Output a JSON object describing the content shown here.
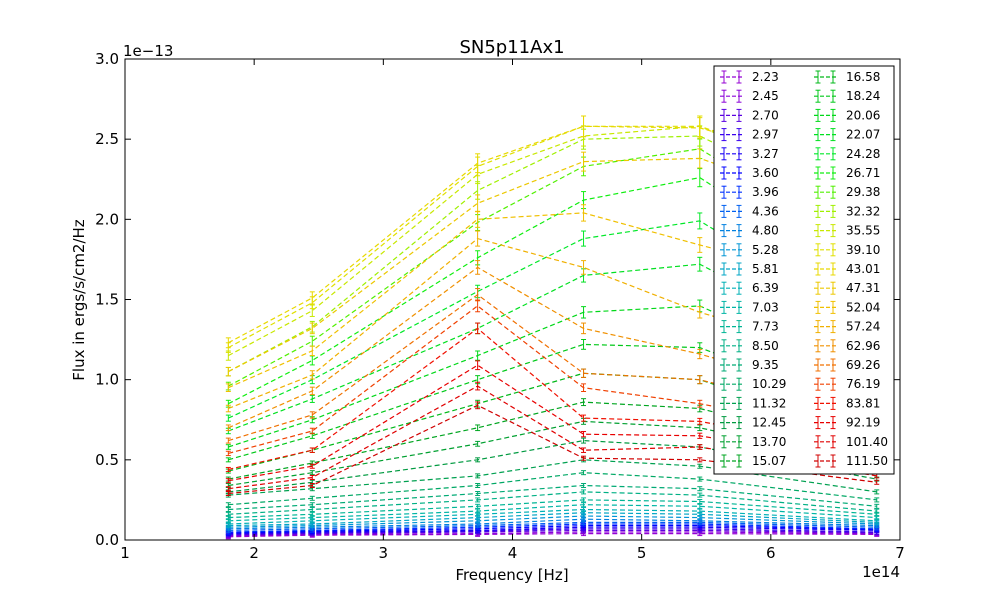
{
  "chart_data": {
    "type": "line",
    "title": "SN5p11Ax1",
    "xlabel": "Frequency [Hz]",
    "ylabel": "Flux in ergs/s/cm2/Hz",
    "x_offset_label": "1e14",
    "y_offset_label": "1e−13",
    "xlim": [
      100000000000000.0,
      700000000000000.0
    ],
    "ylim": [
      0,
      3e-13
    ],
    "x_ticks": [
      1,
      2,
      3,
      4,
      5,
      6,
      7
    ],
    "x_tick_labels": [
      "1",
      "2",
      "3",
      "4",
      "5",
      "6",
      "7"
    ],
    "y_ticks": [
      0,
      0.5,
      1.0,
      1.5,
      2.0,
      2.5,
      3.0
    ],
    "y_tick_labels": [
      "0.0",
      "0.5",
      "1.0",
      "1.5",
      "2.0",
      "2.5",
      "3.0"
    ],
    "line_style": "dashed",
    "error_bars": true,
    "grid": false,
    "legend_position": "upper-right",
    "legend_columns": 2,
    "x": [
      180000000000000.0,
      245000000000000.0,
      373000000000000.0,
      455000000000000.0,
      545000000000000.0,
      682000000000000.0
    ],
    "series": [
      {
        "name": "2.23",
        "color": "#9400d3",
        "values": [
          2e-15,
          3e-15,
          3.5e-15,
          4e-15,
          4e-15,
          3.5e-15
        ]
      },
      {
        "name": "2.45",
        "color": "#8a00d8",
        "values": [
          2.5e-15,
          3.5e-15,
          4e-15,
          5e-15,
          5e-15,
          4e-15
        ]
      },
      {
        "name": "2.70",
        "color": "#5a00e0",
        "values": [
          3e-15,
          4e-15,
          5e-15,
          6e-15,
          6e-15,
          4.5e-15
        ]
      },
      {
        "name": "2.97",
        "color": "#3a00ee",
        "values": [
          3.5e-15,
          4.5e-15,
          5.5e-15,
          7e-15,
          7e-15,
          5e-15
        ]
      },
      {
        "name": "3.27",
        "color": "#1a00f5",
        "values": [
          4e-15,
          5e-15,
          6e-15,
          8e-15,
          8e-15,
          6e-15
        ]
      },
      {
        "name": "3.60",
        "color": "#0000ff",
        "values": [
          4.5e-15,
          5.5e-15,
          7e-15,
          9e-15,
          9e-15,
          6.5e-15
        ]
      },
      {
        "name": "3.96",
        "color": "#0030ff",
        "values": [
          5e-15,
          6e-15,
          8e-15,
          1e-14,
          1e-14,
          7e-15
        ]
      },
      {
        "name": "4.36",
        "color": "#0060f0",
        "values": [
          6e-15,
          7e-15,
          9e-15,
          1.1e-14,
          1.1e-14,
          8e-15
        ]
      },
      {
        "name": "4.80",
        "color": "#0080e0",
        "values": [
          7e-15,
          8e-15,
          1e-14,
          1.3e-14,
          1.2e-14,
          9e-15
        ]
      },
      {
        "name": "5.28",
        "color": "#0095d5",
        "values": [
          8e-15,
          9e-15,
          1.2e-14,
          1.5e-14,
          1.4e-14,
          1e-14
        ]
      },
      {
        "name": "5.81",
        "color": "#00a5c5",
        "values": [
          9e-15,
          1e-14,
          1.4e-14,
          1.7e-14,
          1.6e-14,
          1.1e-14
        ]
      },
      {
        "name": "6.39",
        "color": "#00b0b5",
        "values": [
          1e-14,
          1.2e-14,
          1.6e-14,
          1.9e-14,
          1.8e-14,
          1.2e-14
        ]
      },
      {
        "name": "7.03",
        "color": "#00b5a5",
        "values": [
          1.2e-14,
          1.4e-14,
          1.8e-14,
          2.2e-14,
          2.1e-14,
          1.4e-14
        ]
      },
      {
        "name": "7.73",
        "color": "#00b595",
        "values": [
          1.4e-14,
          1.6e-14,
          2.1e-14,
          2.5e-14,
          2.4e-14,
          1.6e-14
        ]
      },
      {
        "name": "8.50",
        "color": "#00b085",
        "values": [
          1.6e-14,
          1.9e-14,
          2.5e-14,
          3e-14,
          2.8e-14,
          1.8e-14
        ]
      },
      {
        "name": "9.35",
        "color": "#00aa75",
        "values": [
          1.9e-14,
          2.2e-14,
          2.9e-14,
          3.4e-14,
          3.2e-14,
          2.1e-14
        ]
      },
      {
        "name": "10.29",
        "color": "#00a865",
        "values": [
          2.2e-14,
          2.6e-14,
          3.4e-14,
          4.2e-14,
          3.8e-14,
          2.5e-14
        ]
      },
      {
        "name": "11.32",
        "color": "#00a050",
        "values": [
          2.8e-14,
          3.2e-14,
          4e-14,
          5e-14,
          4.6e-14,
          3e-14
        ]
      },
      {
        "name": "12.45",
        "color": "#009a40",
        "values": [
          3e-14,
          3.6e-14,
          5e-14,
          6.2e-14,
          5.8e-14,
          3.8e-14
        ]
      },
      {
        "name": "13.70",
        "color": "#00a030",
        "values": [
          3.4e-14,
          4.2e-14,
          6e-14,
          7.4e-14,
          7e-14,
          4.6e-14
        ]
      },
      {
        "name": "15.07",
        "color": "#00a520",
        "values": [
          3.8e-14,
          4.8e-14,
          7e-14,
          8.6e-14,
          8.2e-14,
          5.4e-14
        ]
      },
      {
        "name": "16.58",
        "color": "#00b818",
        "values": [
          4.3e-14,
          5.6e-14,
          8.5e-14,
          1.04e-13,
          1e-13,
          6.4e-14
        ]
      },
      {
        "name": "18.24",
        "color": "#00c818",
        "values": [
          5e-14,
          6.5e-14,
          1e-13,
          1.22e-13,
          1.2e-13,
          7.8e-14
        ]
      },
      {
        "name": "20.06",
        "color": "#00d818",
        "values": [
          5.8e-14,
          7.5e-14,
          1.15e-13,
          1.42e-13,
          1.46e-13,
          9.6e-14
        ]
      },
      {
        "name": "22.07",
        "color": "#00e020",
        "values": [
          6.8e-14,
          8.8e-14,
          1.32e-13,
          1.65e-13,
          1.72e-13,
          1.14e-13
        ]
      },
      {
        "name": "24.28",
        "color": "#00e828",
        "values": [
          7.6e-14,
          1e-13,
          1.55e-13,
          1.88e-13,
          1.99e-13,
          1.32e-13
        ]
      },
      {
        "name": "26.71",
        "color": "#10ee10",
        "values": [
          8.5e-14,
          1.12e-13,
          1.76e-13,
          2.12e-13,
          2.26e-13,
          1.54e-13
        ]
      },
      {
        "name": "29.38",
        "color": "#50f000",
        "values": [
          9.6e-14,
          1.24e-13,
          1.98e-13,
          2.33e-13,
          2.44e-13,
          1.76e-13
        ]
      },
      {
        "name": "32.32",
        "color": "#a0f000",
        "values": [
          1.05e-13,
          1.33e-13,
          2.18e-13,
          2.5e-13,
          2.52e-13,
          1.98e-13
        ]
      },
      {
        "name": "35.55",
        "color": "#c8e800",
        "values": [
          1.15e-13,
          1.43e-13,
          2.28e-13,
          2.52e-13,
          2.58e-13,
          2.1e-13
        ]
      },
      {
        "name": "39.10",
        "color": "#e0e000",
        "values": [
          1.2e-13,
          1.48e-13,
          2.33e-13,
          2.58e-13,
          2.58e-13,
          2.22e-13
        ]
      },
      {
        "name": "43.01",
        "color": "#e8d800",
        "values": [
          1.23e-13,
          1.51e-13,
          2.35e-13,
          2.58e-13,
          2.57e-13,
          2.26e-13
        ]
      },
      {
        "name": "47.31",
        "color": "#ecc800",
        "values": [
          1.05e-13,
          1.32e-13,
          2.1e-13,
          2.36e-13,
          2.38e-13,
          2e-13
        ]
      },
      {
        "name": "52.04",
        "color": "#f0c000",
        "values": [
          9.5e-14,
          1.18e-13,
          2e-13,
          2.04e-13,
          1.84e-13,
          1.56e-13
        ]
      },
      {
        "name": "57.24",
        "color": "#f0b000",
        "values": [
          8.2e-14,
          1.03e-13,
          1.88e-13,
          1.7e-13,
          1.42e-13,
          1.1e-13
        ]
      },
      {
        "name": "62.96",
        "color": "#f09000",
        "values": [
          7e-14,
          9.3e-14,
          1.7e-13,
          1.32e-13,
          1.16e-13,
          8.4e-14
        ]
      },
      {
        "name": "69.26",
        "color": "#f07000",
        "values": [
          6.2e-14,
          7.8e-14,
          1.53e-13,
          1.04e-13,
          1e-13,
          7.2e-14
        ]
      },
      {
        "name": "76.19",
        "color": "#f04000",
        "values": [
          5.4e-14,
          6.8e-14,
          1.46e-13,
          9.5e-14,
          8.5e-14,
          6.4e-14
        ]
      },
      {
        "name": "83.81",
        "color": "#f01000",
        "values": [
          4.4e-14,
          5.6e-14,
          1.32e-13,
          7.6e-14,
          7.4e-14,
          5.4e-14
        ]
      },
      {
        "name": "92.19",
        "color": "#e80000",
        "values": [
          3.7e-14,
          4.6e-14,
          1.09e-13,
          6.6e-14,
          6.5e-14,
          4.6e-14
        ]
      },
      {
        "name": "101.40",
        "color": "#e00000",
        "values": [
          3.2e-14,
          3.9e-14,
          9.6e-14,
          5.6e-14,
          5.8e-14,
          4e-14
        ]
      },
      {
        "name": "111.50",
        "color": "#d00000",
        "values": [
          2.9e-14,
          3.4e-14,
          8.4e-14,
          5.1e-14,
          5e-14,
          3.6e-14
        ]
      }
    ]
  }
}
